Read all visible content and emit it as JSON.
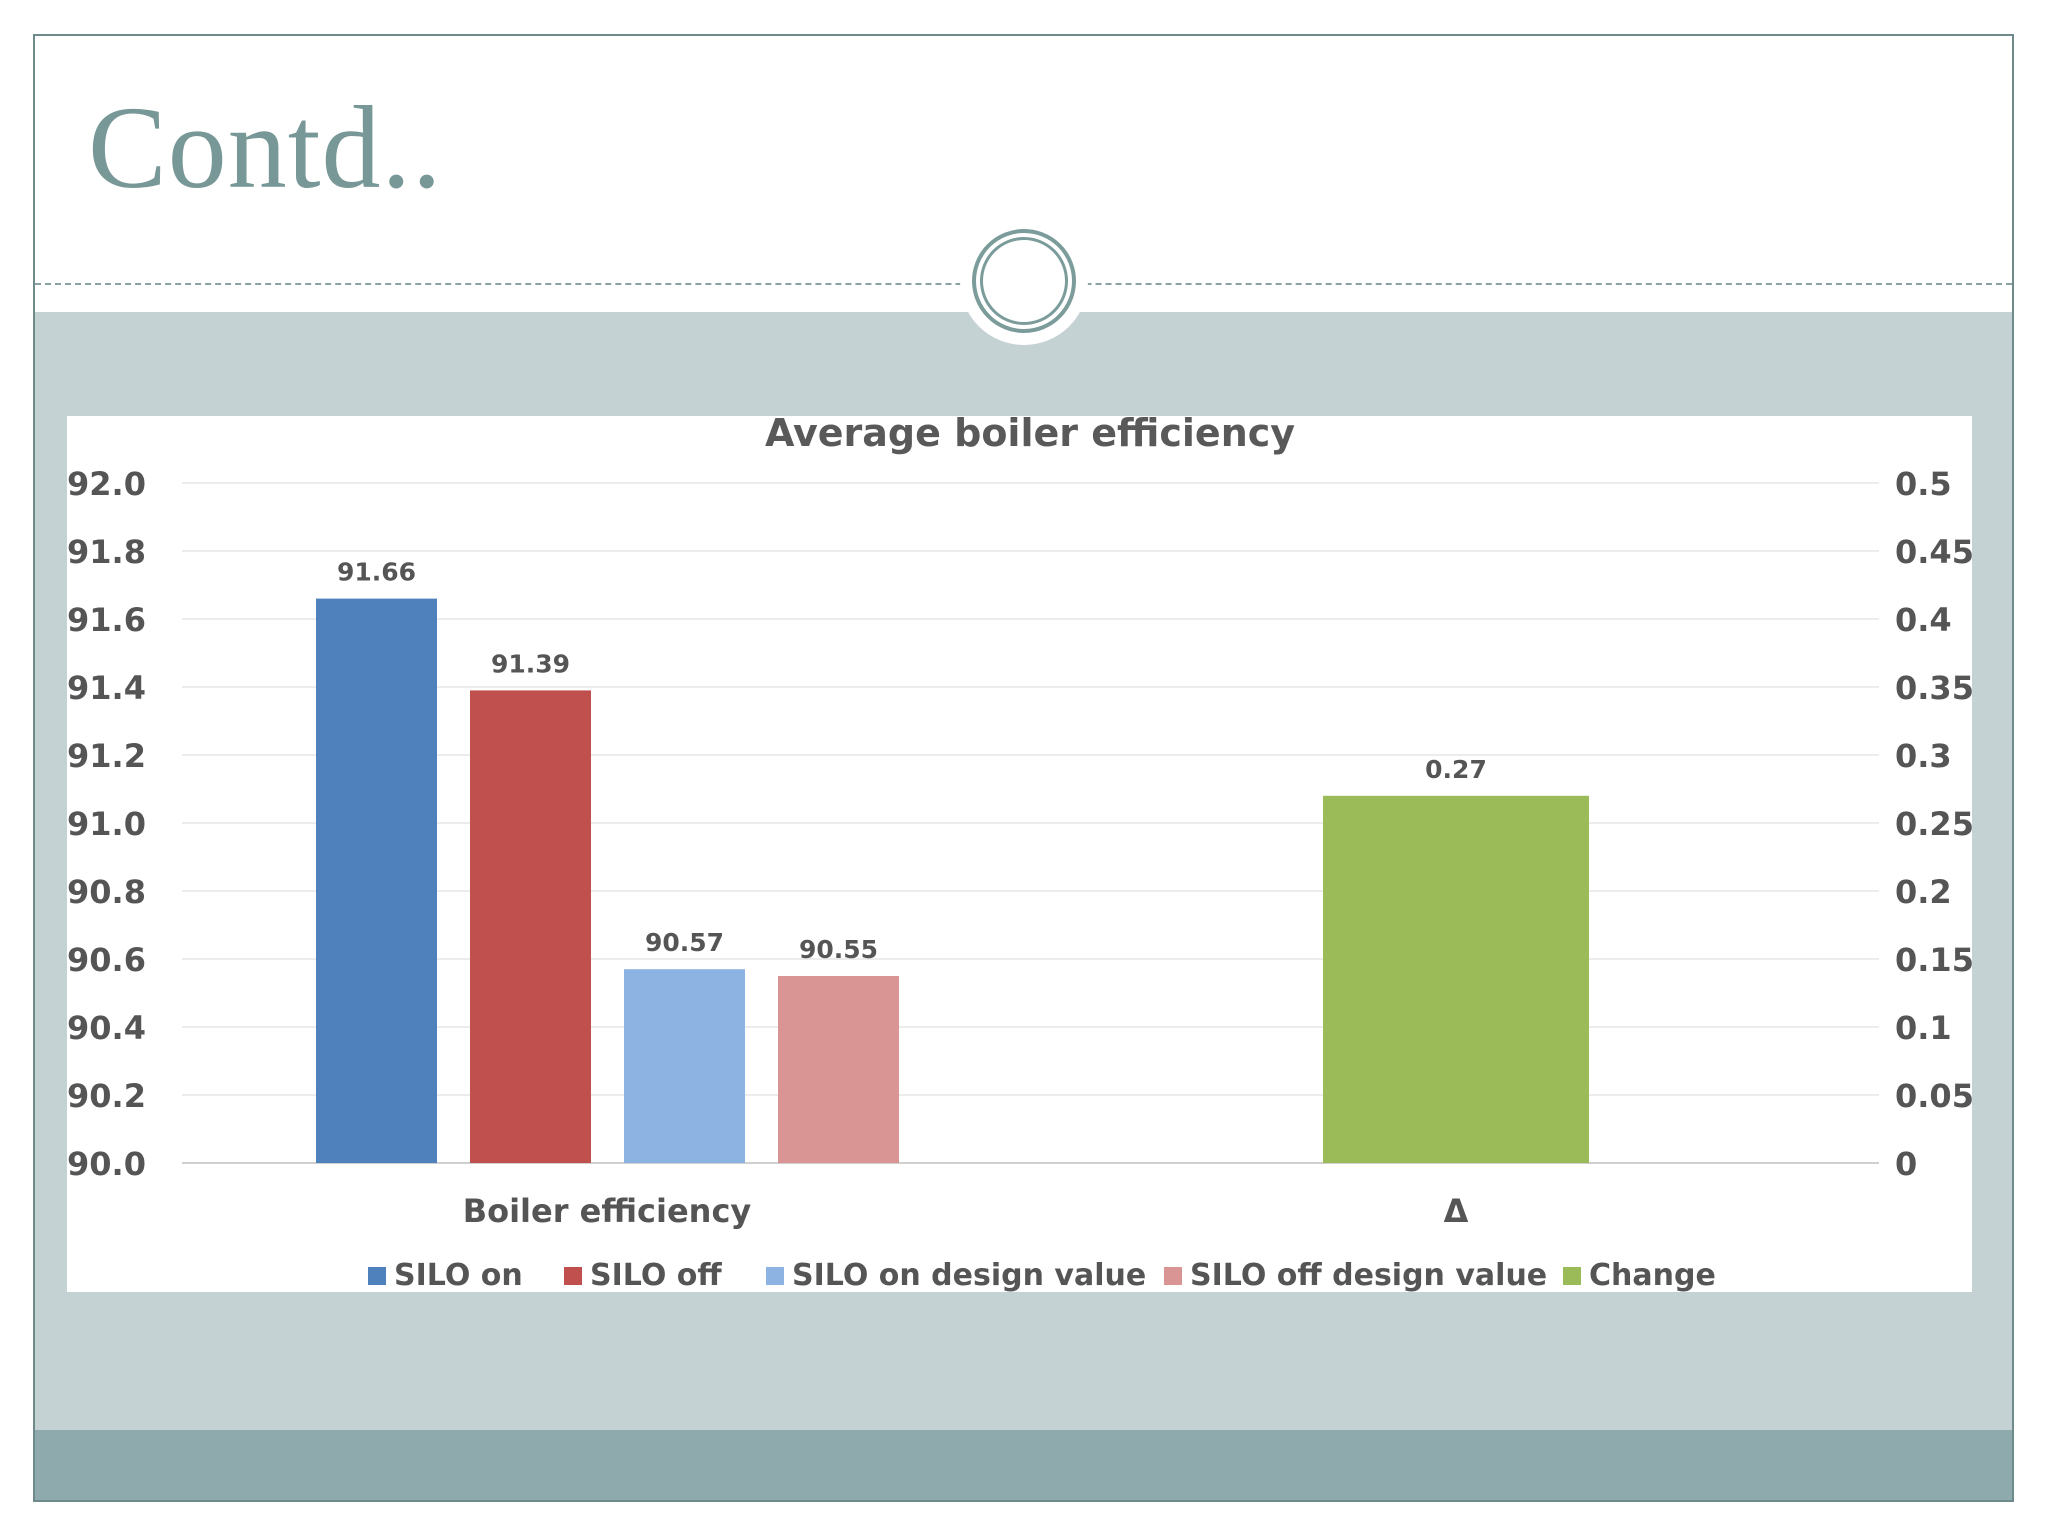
{
  "slide": {
    "title": "Contd.."
  },
  "colors": {
    "frame": "#6f8a8b",
    "title": "#789898",
    "content_band": "#c5d2d4",
    "footer_band": "#8eaaac",
    "circle": "#7c9c9b"
  },
  "chart_data": {
    "type": "bar",
    "title": "Average boiler efficiency",
    "categories": [
      "Boiler efficiency",
      "Δ"
    ],
    "left_axis": {
      "ylim": [
        90.0,
        92.0
      ],
      "ticks": [
        "92.0",
        "91.8",
        "91.6",
        "91.4",
        "91.2",
        "91.0",
        "90.8",
        "90.6",
        "90.4",
        "90.2",
        "90.0"
      ]
    },
    "right_axis": {
      "ylim": [
        0,
        0.5
      ],
      "ticks": [
        "0.5",
        "0.45",
        "0.4",
        "0.35",
        "0.3",
        "0.25",
        "0.2",
        "0.15",
        "0.1",
        "0.05",
        "0"
      ]
    },
    "grid": true,
    "legend_position": "bottom",
    "series": [
      {
        "name": "SILO on",
        "category": "Boiler efficiency",
        "axis": "left",
        "value": 91.66,
        "label": "91.66",
        "color": "#4f81bd"
      },
      {
        "name": "SILO off",
        "category": "Boiler efficiency",
        "axis": "left",
        "value": 91.39,
        "label": "91.39",
        "color": "#c0504d"
      },
      {
        "name": "SILO on design value",
        "category": "Boiler efficiency",
        "axis": "left",
        "value": 90.57,
        "label": "90.57",
        "color": "#8db3e2"
      },
      {
        "name": "SILO off design value",
        "category": "Boiler efficiency",
        "axis": "left",
        "value": 90.55,
        "label": "90.55",
        "color": "#d99594"
      },
      {
        "name": "Change",
        "category": "Δ",
        "axis": "right",
        "value": 0.27,
        "label": "0.27",
        "color": "#9bbb59"
      }
    ]
  }
}
